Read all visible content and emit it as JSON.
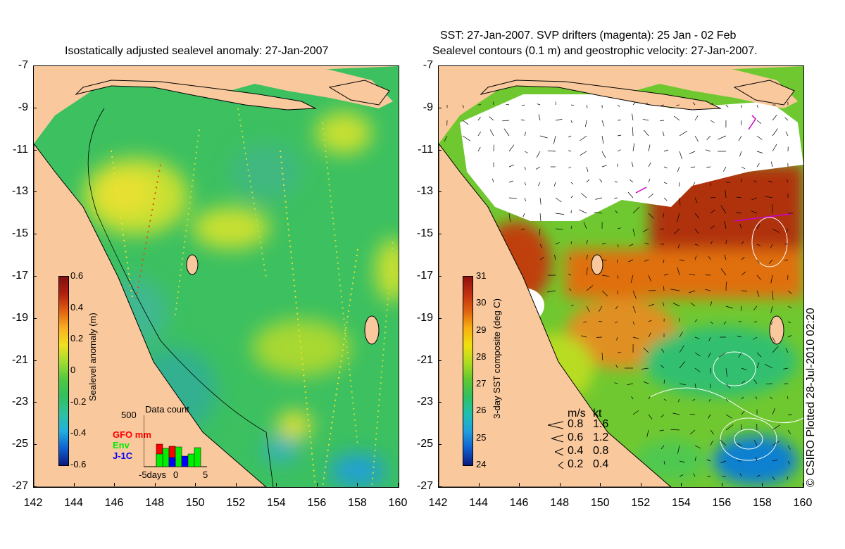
{
  "left": {
    "title": "Isostatically adjusted sealevel anomaly: 27-Jan-2007",
    "colorbar": {
      "label": "Sealevel anomaly (m)",
      "ticks": [
        "0.6",
        "0.4",
        "0.2",
        "0",
        "-0.2",
        "-0.4",
        "-0.6"
      ],
      "colors": [
        "#0a1a80",
        "#1060d0",
        "#20b0e0",
        "#30c0a0",
        "#30c060",
        "#50c840",
        "#a0dc30",
        "#f0e020",
        "#f8b020",
        "#e06010",
        "#b02010",
        "#801010"
      ]
    },
    "data_count": {
      "title": "Data count",
      "max_label": "500",
      "series": [
        {
          "name": "GFO mm",
          "color": "#ff0000"
        },
        {
          "name": "Env",
          "color": "#00ee00"
        },
        {
          "name": "J-1C",
          "color": "#0000ff"
        }
      ],
      "x_labels": [
        "-5days",
        "0",
        "5"
      ]
    }
  },
  "right": {
    "title_line1": "SST: 27-Jan-2007. SVP drifters (magenta): 25 Jan - 02 Feb",
    "title_line2": "Sealevel contours (0.1 m) and geostrophic velocity: 27-Jan-2007.",
    "colorbar": {
      "label": "3-day SST composite (deg C)",
      "ticks": [
        "31",
        "30",
        "29",
        "28",
        "27",
        "26",
        "25",
        "24"
      ],
      "colors": [
        "#0a1a80",
        "#1060d0",
        "#20a0e0",
        "#20c0b0",
        "#30c060",
        "#60c830",
        "#b0dc20",
        "#f0e010",
        "#f8b010",
        "#e06010",
        "#c03010",
        "#901010"
      ]
    },
    "velocity_legend": {
      "header_ms": "m/s",
      "header_kt": "kt",
      "rows": [
        {
          "ms": "0.8",
          "kt": "1.6"
        },
        {
          "ms": "0.6",
          "kt": "1.2"
        },
        {
          "ms": "0.4",
          "kt": "0.8"
        },
        {
          "ms": "0.2",
          "kt": "0.4"
        }
      ]
    }
  },
  "axes": {
    "y_labels": [
      "-7",
      "-9",
      "-11",
      "-13",
      "-15",
      "-17",
      "-19",
      "-21",
      "-23",
      "-25",
      "-27"
    ],
    "x_labels": [
      "142",
      "144",
      "146",
      "148",
      "150",
      "152",
      "154",
      "156",
      "158",
      "160"
    ]
  },
  "colors": {
    "land": "#f9c89c",
    "cloud": "#ffffff"
  },
  "copyright": "© CSIRO Plotted 28-Jul-2010 02:20"
}
